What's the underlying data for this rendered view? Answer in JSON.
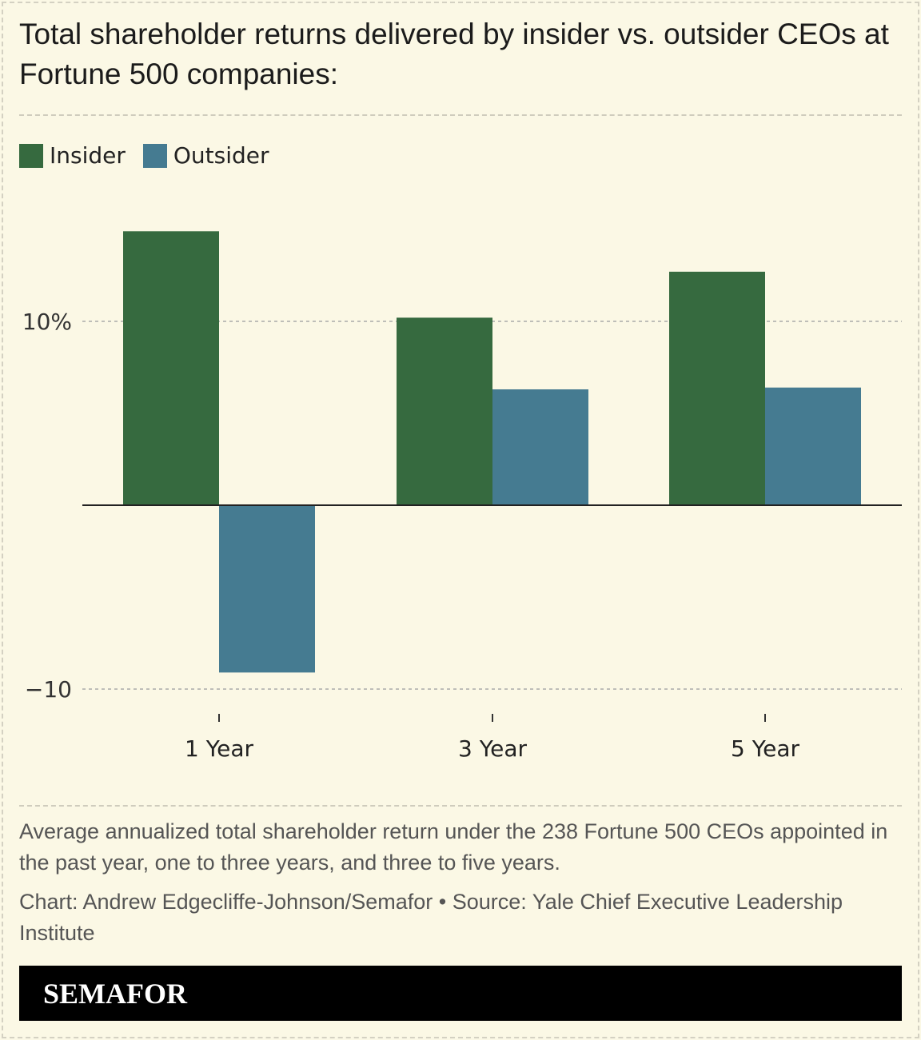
{
  "title": "Total shareholder returns delivered by insider vs. outsider CEOs at Fortune 500 companies:",
  "note": "Average annualized total shareholder return under the 238 Fortune 500 CEOs appointed in the past year, one to three years, and three to five years.",
  "credit": "Chart: Andrew Edgecliffe-Johnson/Semafor • Source: Yale Chief Executive Leadership Institute",
  "logo": "SEMAFOR",
  "chart_data": {
    "type": "bar",
    "categories": [
      "1 Year",
      "3 Year",
      "5 Year"
    ],
    "series": [
      {
        "name": "Insider",
        "color": "#366a3f",
        "values": [
          14.9,
          10.2,
          12.7
        ]
      },
      {
        "name": "Outsider",
        "color": "#457b91",
        "values": [
          -9.1,
          6.3,
          6.4
        ]
      }
    ],
    "yticks": [
      {
        "value": 10,
        "label": "10%"
      },
      {
        "value": -10,
        "label": "−10"
      }
    ],
    "ylim": [
      -10,
      15
    ],
    "grid": true,
    "legend": "top-left"
  }
}
